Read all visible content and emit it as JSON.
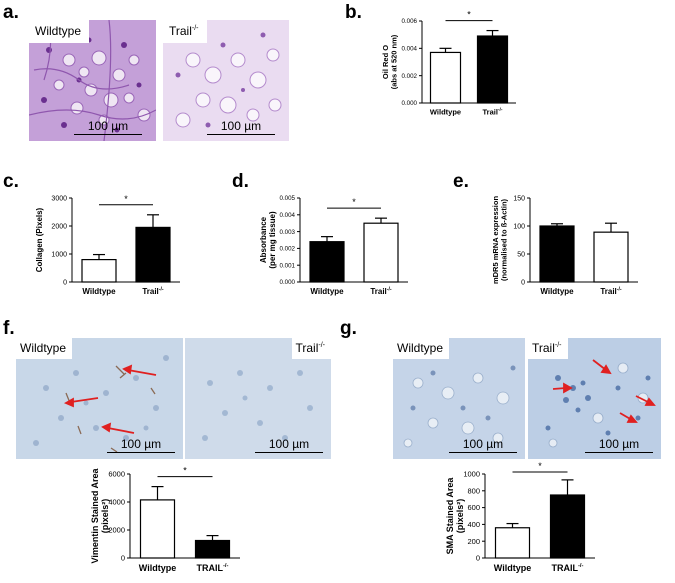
{
  "panels": {
    "a": {
      "letter": "a.",
      "left_label": "Wildtype",
      "right_label": "Trail",
      "right_sup": "-/-",
      "scale_label": "100 µm"
    },
    "b": {
      "letter": "b."
    },
    "c": {
      "letter": "c."
    },
    "d": {
      "letter": "d."
    },
    "e": {
      "letter": "e."
    },
    "f": {
      "letter": "f.",
      "left_label": "Wildtype",
      "right_label": "Trail",
      "right_sup": "-/-",
      "scale_label": "100 µm"
    },
    "g": {
      "letter": "g.",
      "left_label": "Wildtype",
      "right_label": "Trail",
      "right_sup": "-/-",
      "scale_label": "100 µm"
    }
  },
  "colors": {
    "he_stain": "#b98fd0",
    "ihc_bg": "#c9d6e6",
    "arrow": "#e02020",
    "bar_dark": "#000000",
    "bar_light": "#ffffff"
  },
  "chart_data": [
    {
      "id": "b",
      "type": "bar",
      "ylabel": "Oil Red O",
      "ylabel2": "(abs at 520 nm)",
      "categories": [
        "Wildtype",
        "Trail"
      ],
      "category_sups": [
        "",
        "-/-"
      ],
      "values": [
        0.0037,
        0.0049
      ],
      "errors": [
        0.0003,
        0.0004
      ],
      "fills": [
        "#ffffff",
        "#000000"
      ],
      "ylim": [
        0,
        0.006
      ],
      "yticks": [
        0,
        0.002,
        0.004,
        0.006
      ],
      "ytick_labels": [
        "0.000",
        "0.002",
        "0.004",
        "0.006"
      ],
      "significance": "*"
    },
    {
      "id": "c",
      "type": "bar",
      "ylabel": "Collagen (Pixels)",
      "ylabel2": "",
      "categories": [
        "Wildtype",
        "Trail"
      ],
      "category_sups": [
        "",
        "-/-"
      ],
      "values": [
        800,
        1950
      ],
      "errors": [
        180,
        450
      ],
      "fills": [
        "#ffffff",
        "#000000"
      ],
      "ylim": [
        0,
        3000
      ],
      "yticks": [
        0,
        1000,
        2000,
        3000
      ],
      "ytick_labels": [
        "0",
        "1000",
        "2000",
        "3000"
      ],
      "significance": "*"
    },
    {
      "id": "d",
      "type": "bar",
      "ylabel": "Absorbance",
      "ylabel2": "(per mg tissue)",
      "categories": [
        "Wildtype",
        "Trail"
      ],
      "category_sups": [
        "",
        "-/-"
      ],
      "values": [
        0.0024,
        0.0035
      ],
      "errors": [
        0.0003,
        0.0003
      ],
      "fills": [
        "#000000",
        "#ffffff"
      ],
      "ylim": [
        0,
        0.005
      ],
      "yticks": [
        0,
        0.001,
        0.002,
        0.003,
        0.004,
        0.005
      ],
      "ytick_labels": [
        "0.000",
        "0.001",
        "0.002",
        "0.003",
        "0.004",
        "0.005"
      ],
      "significance": "*"
    },
    {
      "id": "e",
      "type": "bar",
      "ylabel": "mDR5 mRNA expression",
      "ylabel2": "(normalised to ß-Actin)",
      "categories": [
        "Wildtype",
        "Trail"
      ],
      "category_sups": [
        "",
        "-/-"
      ],
      "values": [
        100,
        89
      ],
      "errors": [
        4,
        16
      ],
      "fills": [
        "#000000",
        "#ffffff"
      ],
      "ylim": [
        0,
        150
      ],
      "yticks": [
        0,
        50,
        100,
        150
      ],
      "ytick_labels": [
        "0",
        "50",
        "100",
        "150"
      ],
      "significance": ""
    },
    {
      "id": "f",
      "type": "bar",
      "ylabel": "Vimentin Stained Area",
      "ylabel2": "(pixels²)",
      "categories": [
        "Wildtype",
        "TRAIL"
      ],
      "category_sups": [
        "",
        "-/-"
      ],
      "values": [
        4150,
        1250
      ],
      "errors": [
        950,
        350
      ],
      "fills": [
        "#ffffff",
        "#000000"
      ],
      "ylim": [
        0,
        6000
      ],
      "yticks": [
        0,
        2000,
        4000,
        6000
      ],
      "ytick_labels": [
        "0",
        "2000",
        "4000",
        "6000"
      ],
      "significance": "*"
    },
    {
      "id": "g",
      "type": "bar",
      "ylabel": "SMA Stained Area",
      "ylabel2": "(pixels²)",
      "categories": [
        "Wildtype",
        "TRAIL"
      ],
      "category_sups": [
        "",
        "-/-"
      ],
      "values": [
        360,
        750
      ],
      "errors": [
        50,
        180
      ],
      "fills": [
        "#ffffff",
        "#000000"
      ],
      "ylim": [
        0,
        1000
      ],
      "yticks": [
        0,
        200,
        400,
        600,
        800,
        1000
      ],
      "ytick_labels": [
        "0",
        "200",
        "400",
        "600",
        "800",
        "1000"
      ],
      "significance": "*"
    }
  ]
}
